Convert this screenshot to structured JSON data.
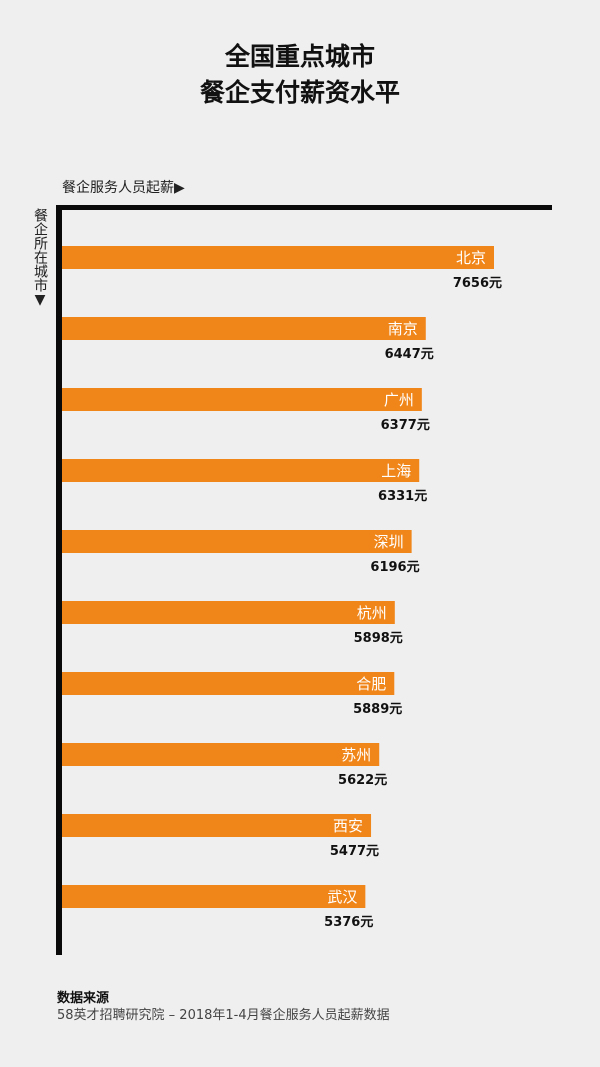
{
  "title": {
    "line1": "全国重点城市",
    "line2": "餐企支付薪资水平"
  },
  "x_axis_label": "餐企服务人员起薪▶",
  "y_axis_label": "餐企所在城市▼",
  "source": {
    "title": "数据来源",
    "text": "58英才招聘研究院 – 2018年1-4月餐企服务人员起薪数据"
  },
  "colors": {
    "bar": "#f0861a",
    "background": "#efefef",
    "axis": "#0a0a0a"
  },
  "chart_data": {
    "type": "bar",
    "orientation": "horizontal",
    "title": "全国重点城市 餐企支付薪资水平",
    "xlabel": "餐企服务人员起薪",
    "ylabel": "餐企所在城市",
    "value_suffix": "元",
    "categories": [
      "北京",
      "南京",
      "广州",
      "上海",
      "深圳",
      "杭州",
      "合肥",
      "苏州",
      "西安",
      "武汉"
    ],
    "values": [
      7656,
      6447,
      6377,
      6331,
      6196,
      5898,
      5889,
      5622,
      5477,
      5376
    ],
    "value_labels": [
      "7656元",
      "6447元",
      "6377元",
      "6331元",
      "6196元",
      "5898元",
      "5889元",
      "5622元",
      "5477元",
      "5376元"
    ]
  }
}
